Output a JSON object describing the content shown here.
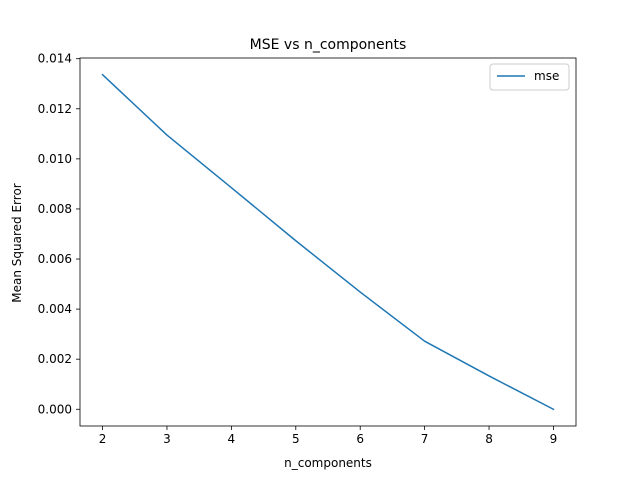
{
  "chart_data": {
    "type": "line",
    "title": "MSE vs n_components",
    "xlabel": "n_components",
    "ylabel": "Mean Squared Error",
    "x": [
      2,
      3,
      4,
      5,
      6,
      7,
      8,
      9
    ],
    "series": [
      {
        "name": "mse",
        "values": [
          0.01336,
          0.01095,
          0.00885,
          0.00673,
          0.00468,
          0.00272,
          0.00133,
          0.0
        ],
        "color": "#1f77b4"
      }
    ],
    "xticks": [
      2,
      3,
      4,
      5,
      6,
      7,
      8,
      9
    ],
    "xtick_labels": [
      "2",
      "3",
      "4",
      "5",
      "6",
      "7",
      "8",
      "9"
    ],
    "yticks": [
      0.0,
      0.002,
      0.004,
      0.006,
      0.008,
      0.01,
      0.012,
      0.014
    ],
    "ytick_labels": [
      "0.000",
      "0.002",
      "0.004",
      "0.006",
      "0.008",
      "0.010",
      "0.012",
      "0.014"
    ],
    "xlim": [
      1.65,
      9.35
    ],
    "ylim": [
      -0.000668,
      0.014028
    ],
    "grid": false,
    "legend_position": "top-right"
  }
}
